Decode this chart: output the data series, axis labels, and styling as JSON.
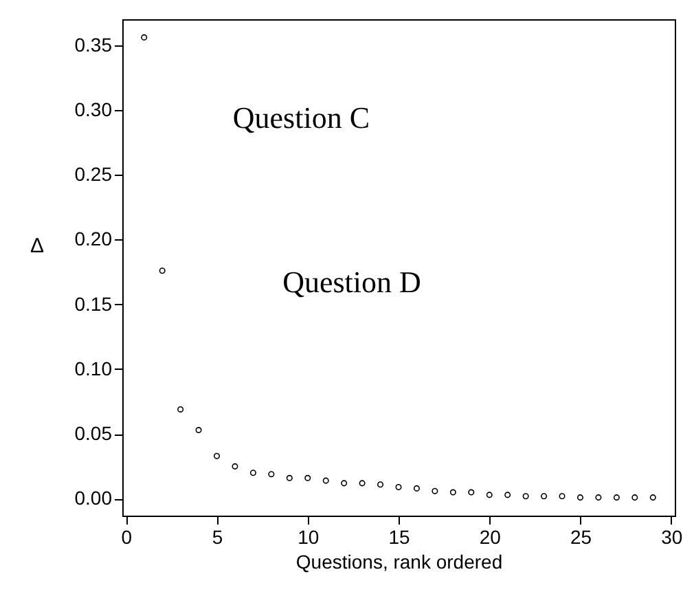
{
  "chart_data": {
    "type": "scatter",
    "xlabel": "Questions, rank ordered",
    "ylabel": "Δ",
    "annotations": [
      "Question C",
      "Question D"
    ],
    "x": [
      1,
      2,
      3,
      4,
      5,
      6,
      7,
      8,
      9,
      10,
      11,
      12,
      13,
      14,
      15,
      16,
      17,
      18,
      19,
      20,
      21,
      22,
      23,
      24,
      25,
      26,
      27,
      28,
      29
    ],
    "values": [
      0.356,
      0.176,
      0.069,
      0.053,
      0.033,
      0.025,
      0.02,
      0.019,
      0.016,
      0.016,
      0.014,
      0.012,
      0.012,
      0.011,
      0.009,
      0.008,
      0.006,
      0.005,
      0.005,
      0.003,
      0.003,
      0.002,
      0.002,
      0.002,
      0.001,
      0.001,
      0.001,
      0.001,
      0.001
    ],
    "color": "#000000",
    "marker": "circle",
    "grid": false,
    "xlim": [
      -0.2,
      30.2
    ],
    "xticks": [
      0,
      5,
      10,
      15,
      20,
      25,
      30
    ],
    "ylim": [
      -0.013,
      0.37
    ],
    "yticks": [
      {
        "value": 0,
        "label": "0.00"
      },
      {
        "value": 0.05,
        "label": "0.05"
      },
      {
        "value": 0.1,
        "label": "0.10"
      },
      {
        "value": 0.15,
        "label": "0.15"
      },
      {
        "value": 0.2,
        "label": "0.20"
      },
      {
        "value": 0.25,
        "label": "0.25"
      },
      {
        "value": 0.3,
        "label": "0.30"
      },
      {
        "value": 0.35,
        "label": "0.35"
      }
    ]
  }
}
